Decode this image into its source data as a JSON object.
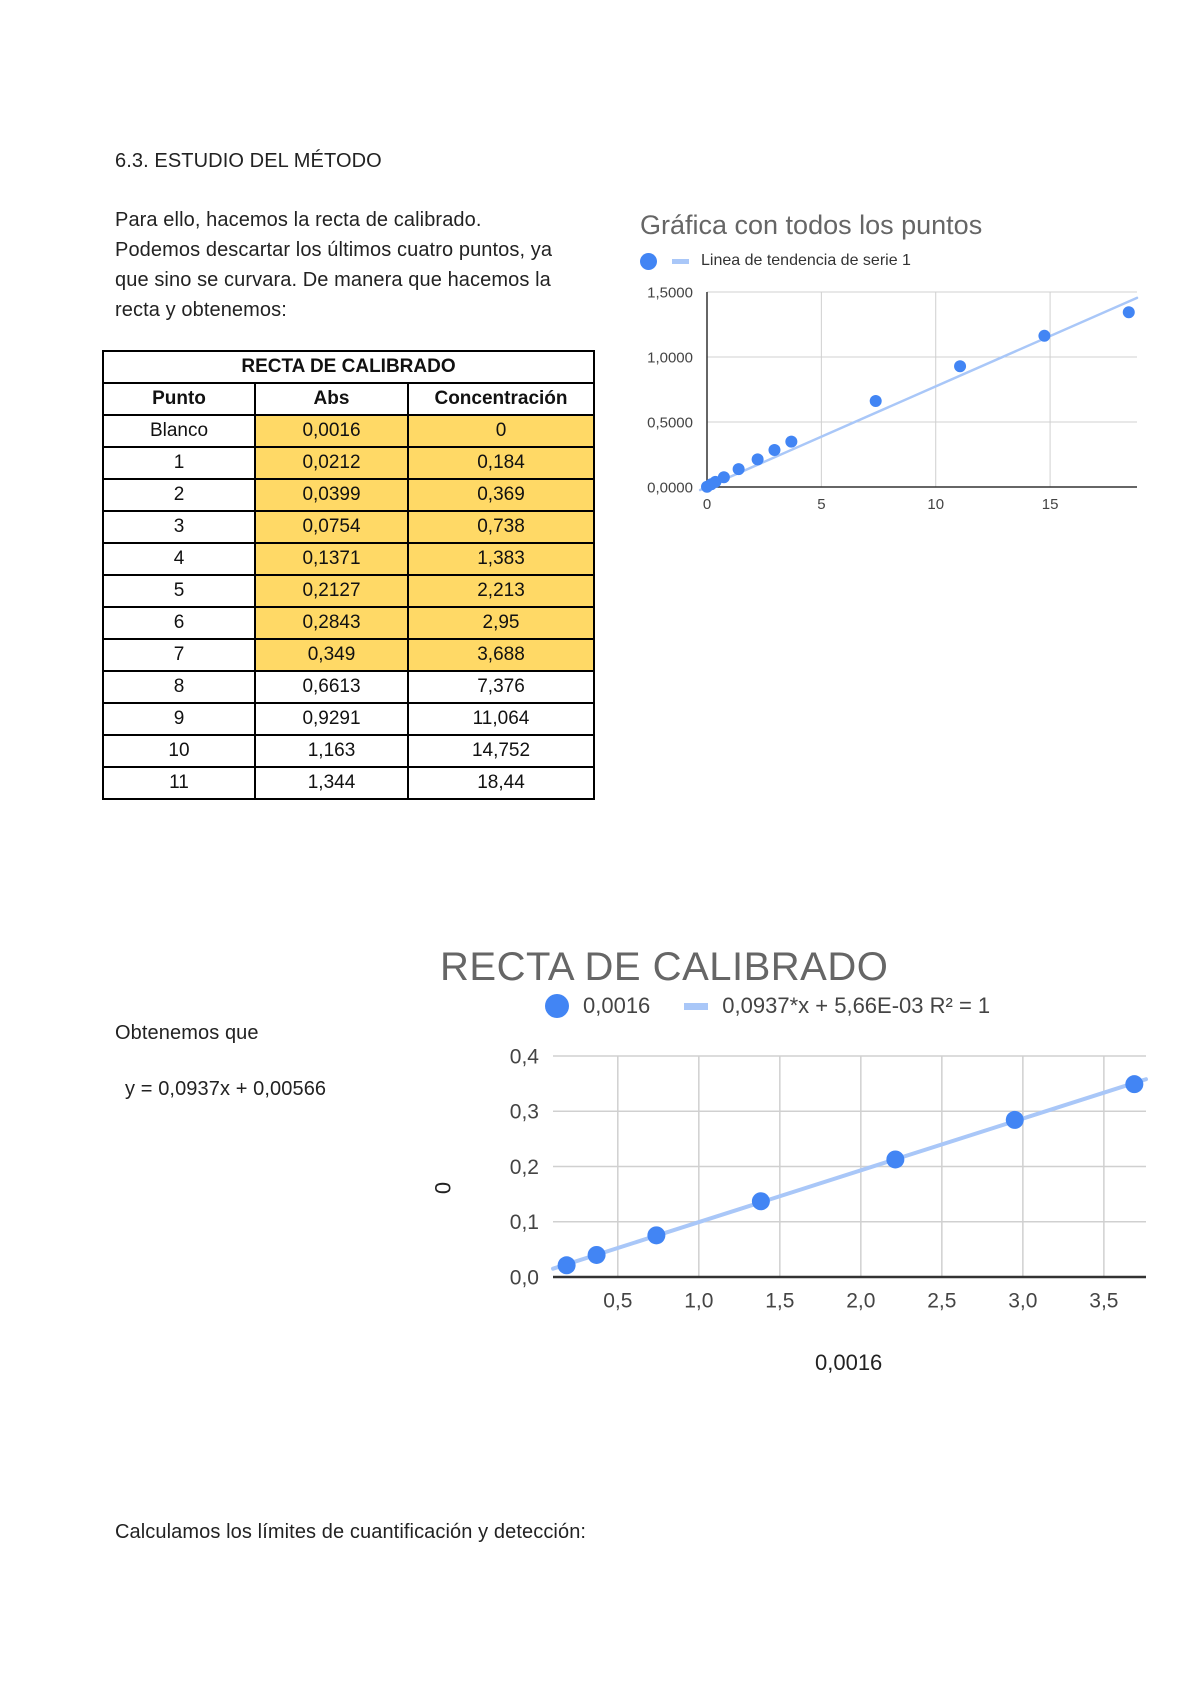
{
  "section": {
    "heading": "6.3. ESTUDIO DEL MÉTODO",
    "paragraph_lines": [
      "Para ello, hacemos la recta de calibrado.",
      "Podemos descartar los últimos cuatro puntos, ya",
      "que sino se curvara. De manera que hacemos la",
      "recta y obtenemos:"
    ]
  },
  "table": {
    "title": "RECTA DE CALIBRADO",
    "headers": [
      "Punto",
      "Abs",
      "Concentración"
    ],
    "highlight_color": "#ffd966",
    "rows": [
      {
        "punto": "Blanco",
        "abs": "0,0016",
        "conc": "0",
        "highlighted": true
      },
      {
        "punto": "1",
        "abs": "0,0212",
        "conc": "0,184",
        "highlighted": true
      },
      {
        "punto": "2",
        "abs": "0,0399",
        "conc": "0,369",
        "highlighted": true
      },
      {
        "punto": "3",
        "abs": "0,0754",
        "conc": "0,738",
        "highlighted": true
      },
      {
        "punto": "4",
        "abs": "0,1371",
        "conc": "1,383",
        "highlighted": true
      },
      {
        "punto": "5",
        "abs": "0,2127",
        "conc": "2,213",
        "highlighted": true
      },
      {
        "punto": "6",
        "abs": "0,2843",
        "conc": "2,95",
        "highlighted": true
      },
      {
        "punto": "7",
        "abs": "0,349",
        "conc": "3,688",
        "highlighted": true
      },
      {
        "punto": "8",
        "abs": "0,6613",
        "conc": "7,376",
        "highlighted": false
      },
      {
        "punto": "9",
        "abs": "0,9291",
        "conc": "11,064",
        "highlighted": false
      },
      {
        "punto": "10",
        "abs": "1,163",
        "conc": "14,752",
        "highlighted": false
      },
      {
        "punto": "11",
        "abs": "1,344",
        "conc": "18,44",
        "highlighted": false
      }
    ]
  },
  "text_blocks": {
    "obtenemos": "Obtenemos que",
    "equation": "y = 0,0937x + 0,00566",
    "calculamos": "Calculamos los límites de cuantificación y detección:"
  },
  "chart_data": [
    {
      "type": "scatter",
      "title": "Gráfica con todos los puntos",
      "legend": [
        "",
        "Linea de tendencia de serie 1"
      ],
      "legend_position": "top",
      "xlabel": "",
      "ylabel": "",
      "xlim": [
        0,
        18.8
      ],
      "ylim": [
        0,
        1.5
      ],
      "xticks": [
        "0",
        "5",
        "10",
        "15"
      ],
      "yticks": [
        "0,0000",
        "0,5000",
        "1,0000",
        "1,5000"
      ],
      "grid": true,
      "point_color": "#4285f4",
      "trend_color": "#a9c7f8",
      "x": [
        0,
        0.184,
        0.369,
        0.738,
        1.383,
        2.213,
        2.95,
        3.688,
        7.376,
        11.064,
        14.752,
        18.44
      ],
      "y": [
        0.0016,
        0.0212,
        0.0399,
        0.0754,
        0.1371,
        0.2127,
        0.2843,
        0.349,
        0.6613,
        0.9291,
        1.163,
        1.344
      ],
      "trendline": {
        "slope": 0.0774,
        "intercept": 0.0
      }
    },
    {
      "type": "scatter",
      "title": "RECTA DE CALIBRADO",
      "legend": [
        "0,0016",
        "0,0937*x + 5,66E-03 R² = 1"
      ],
      "legend_position": "top",
      "xlabel": "0,0016",
      "ylabel": "0",
      "xlim": [
        0.1,
        3.8
      ],
      "ylim": [
        0,
        0.4
      ],
      "xticks": [
        "0,5",
        "1,0",
        "1,5",
        "2,0",
        "2,5",
        "3,0",
        "3,5"
      ],
      "yticks": [
        "0,0",
        "0,1",
        "0,2",
        "0,3",
        "0,4"
      ],
      "grid": true,
      "point_color": "#4285f4",
      "trend_color": "#a9c7f8",
      "x": [
        0.184,
        0.369,
        0.738,
        1.383,
        2.213,
        2.95,
        3.688
      ],
      "y": [
        0.0212,
        0.0399,
        0.0754,
        0.1371,
        0.2127,
        0.2843,
        0.349
      ],
      "trendline": {
        "slope": 0.0937,
        "intercept": 0.00566,
        "r2": 1
      }
    }
  ]
}
